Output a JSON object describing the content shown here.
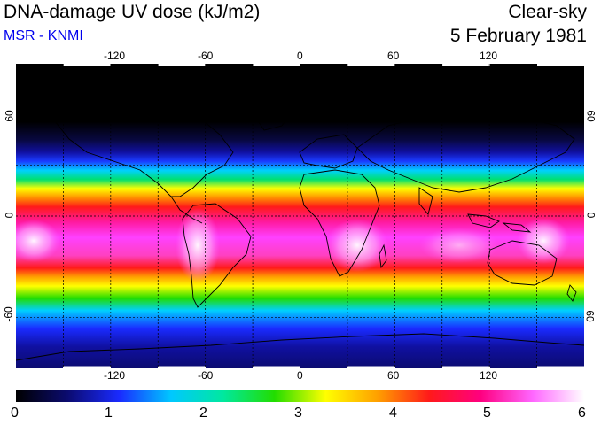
{
  "header": {
    "title": "DNA-damage UV dose (kJ/m2)",
    "subtitle": "MSR - KNMI",
    "sky_condition": "Clear-sky",
    "date": "5 February 1981"
  },
  "map": {
    "longitude_ticks": [
      "-120",
      "-60",
      "0",
      "60",
      "120"
    ],
    "latitude_ticks": [
      "60",
      "0",
      "-60"
    ],
    "lon_range": [
      -180,
      180
    ],
    "lat_range": [
      -90,
      90
    ],
    "grid_lons": [
      -150,
      -120,
      -90,
      -60,
      -30,
      0,
      30,
      60,
      90,
      120,
      150
    ],
    "grid_lats": [
      -60,
      -30,
      0,
      30,
      60
    ]
  },
  "colorbar": {
    "labels": [
      "0",
      "1",
      "2",
      "3",
      "4",
      "5",
      "6"
    ],
    "min": 0,
    "max": 6,
    "colors": [
      "#000000",
      "#0b0b70",
      "#1a2bff",
      "#00c8ff",
      "#00e8a0",
      "#22dd00",
      "#ffff00",
      "#ffa000",
      "#ff1a1a",
      "#ff0080",
      "#ff66ff",
      "#ffffff"
    ]
  }
}
